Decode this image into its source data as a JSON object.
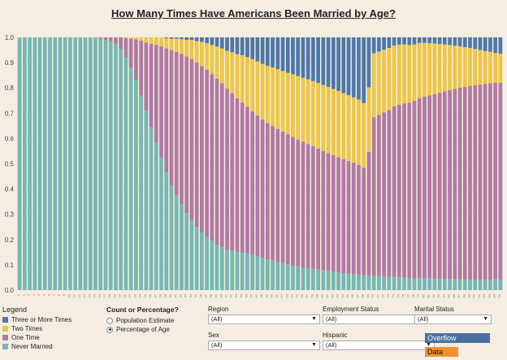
{
  "title": "How Many Times Have Americans Been Married by Age?",
  "colors": {
    "three_or_more": "#4e78a8",
    "two": "#ecc646",
    "one": "#b07aa1",
    "never": "#76b7b2"
  },
  "legend": {
    "title": "Legend",
    "items": [
      {
        "label": "Three or More Times",
        "color": "#4e78a8"
      },
      {
        "label": "Two Times",
        "color": "#ecc646"
      },
      {
        "label": "One Time",
        "color": "#b07aa1"
      },
      {
        "label": "Never Married",
        "color": "#76b7b2"
      }
    ]
  },
  "count_or_percentage": {
    "title": "Count or Percentage?",
    "options": [
      "Population Estimate",
      "Percentage of Age"
    ],
    "selected": "Percentage of Age"
  },
  "filters": {
    "region": {
      "label": "Region",
      "value": "(All)"
    },
    "employment_status": {
      "label": "Employment Status",
      "value": "(All)"
    },
    "marital_status": {
      "label": "Marital Status",
      "value": "(All)"
    },
    "sex": {
      "label": "Sex",
      "value": "(All)"
    },
    "hispanic": {
      "label": "Hispanic",
      "value": "(All)"
    }
  },
  "buttons": {
    "overflow": "Overflow",
    "data": "Data"
  },
  "chart_data": {
    "type": "bar",
    "stacked": true,
    "normalized": true,
    "ylim": [
      0,
      1
    ],
    "yticks": [
      0.0,
      0.1,
      0.2,
      0.3,
      0.4,
      0.5,
      0.6,
      0.7,
      0.8,
      0.9,
      1.0
    ],
    "ytick_labels": [
      "0.0",
      "0.1",
      "0.2",
      "0.3",
      "0.4",
      "0.5",
      "0.6",
      "0.7",
      "0.8",
      "0.9",
      "1.0"
    ],
    "x_start": 0,
    "x_end": 95,
    "series_order": [
      "never",
      "one",
      "two",
      "three_or_more"
    ],
    "series": [
      {
        "key": "never",
        "name": "Never Married",
        "values": [
          1,
          1,
          1,
          1,
          1,
          1,
          1,
          1,
          1,
          1,
          1,
          1,
          1,
          1,
          1,
          1,
          0.995,
          0.99,
          0.985,
          0.975,
          0.955,
          0.92,
          0.88,
          0.83,
          0.77,
          0.71,
          0.645,
          0.585,
          0.525,
          0.465,
          0.415,
          0.375,
          0.34,
          0.305,
          0.275,
          0.25,
          0.23,
          0.21,
          0.195,
          0.18,
          0.17,
          0.16,
          0.155,
          0.15,
          0.148,
          0.145,
          0.14,
          0.135,
          0.128,
          0.122,
          0.118,
          0.112,
          0.107,
          0.102,
          0.098,
          0.094,
          0.09,
          0.087,
          0.084,
          0.081,
          0.078,
          0.075,
          0.072,
          0.07,
          0.067,
          0.065,
          0.063,
          0.061,
          0.059,
          0.057,
          0.056,
          0.055,
          0.054,
          0.053,
          0.052,
          0.051,
          0.05,
          0.049,
          0.048,
          0.047,
          0.047,
          0.046,
          0.045,
          0.045,
          0.044,
          0.044,
          0.043,
          0.043,
          0.042,
          0.042,
          0.042,
          0.041,
          0.041,
          0.041,
          0.045,
          0.04
        ]
      },
      {
        "key": "one",
        "name": "One Time",
        "values": [
          0,
          0,
          0,
          0,
          0,
          0,
          0,
          0,
          0,
          0,
          0,
          0,
          0,
          0,
          0,
          0,
          0.005,
          0.01,
          0.015,
          0.025,
          0.045,
          0.078,
          0.115,
          0.162,
          0.217,
          0.27,
          0.33,
          0.385,
          0.44,
          0.492,
          0.535,
          0.567,
          0.595,
          0.62,
          0.64,
          0.65,
          0.657,
          0.662,
          0.66,
          0.656,
          0.648,
          0.637,
          0.624,
          0.609,
          0.594,
          0.58,
          0.567,
          0.556,
          0.547,
          0.539,
          0.532,
          0.526,
          0.52,
          0.514,
          0.508,
          0.502,
          0.497,
          0.491,
          0.485,
          0.479,
          0.473,
          0.467,
          0.462,
          0.456,
          0.451,
          0.446,
          0.441,
          0.435,
          0.425,
          0.49,
          0.628,
          0.638,
          0.649,
          0.66,
          0.675,
          0.683,
          0.689,
          0.693,
          0.701,
          0.712,
          0.719,
          0.725,
          0.731,
          0.736,
          0.742,
          0.748,
          0.753,
          0.758,
          0.762,
          0.766,
          0.769,
          0.772,
          0.775,
          0.778,
          0.775,
          0.78
        ]
      },
      {
        "key": "two",
        "name": "Two Times",
        "values": [
          0,
          0,
          0,
          0,
          0,
          0,
          0,
          0,
          0,
          0,
          0,
          0,
          0,
          0,
          0,
          0,
          0,
          0,
          0,
          0,
          0,
          0.002,
          0.005,
          0.008,
          0.013,
          0.02,
          0.025,
          0.03,
          0.035,
          0.04,
          0.045,
          0.053,
          0.058,
          0.065,
          0.075,
          0.085,
          0.095,
          0.105,
          0.115,
          0.128,
          0.138,
          0.15,
          0.162,
          0.175,
          0.187,
          0.197,
          0.207,
          0.214,
          0.22,
          0.226,
          0.231,
          0.236,
          0.24,
          0.244,
          0.248,
          0.251,
          0.253,
          0.256,
          0.258,
          0.26,
          0.261,
          0.262,
          0.262,
          0.262,
          0.261,
          0.26,
          0.259,
          0.258,
          0.256,
          0.255,
          0.253,
          0.251,
          0.248,
          0.245,
          0.241,
          0.237,
          0.233,
          0.228,
          0.223,
          0.219,
          0.212,
          0.206,
          0.2,
          0.193,
          0.186,
          0.178,
          0.171,
          0.164,
          0.157,
          0.15,
          0.143,
          0.137,
          0.13,
          0.124,
          0.118,
          0.115
        ]
      },
      {
        "key": "three_or_more",
        "name": "Three or More Times",
        "values": [
          0,
          0,
          0,
          0,
          0,
          0,
          0,
          0,
          0,
          0,
          0,
          0,
          0,
          0,
          0,
          0,
          0,
          0,
          0,
          0,
          0,
          0,
          0,
          0,
          0,
          0,
          0,
          0,
          0,
          0.003,
          0.005,
          0.005,
          0.007,
          0.01,
          0.01,
          0.015,
          0.018,
          0.023,
          0.03,
          0.036,
          0.044,
          0.053,
          0.059,
          0.066,
          0.071,
          0.078,
          0.086,
          0.095,
          0.105,
          0.113,
          0.119,
          0.126,
          0.133,
          0.14,
          0.146,
          0.153,
          0.16,
          0.166,
          0.173,
          0.18,
          0.188,
          0.196,
          0.204,
          0.212,
          0.221,
          0.229,
          0.237,
          0.246,
          0.26,
          0.198,
          0.063,
          0.056,
          0.049,
          0.042,
          0.032,
          0.029,
          0.028,
          0.03,
          0.028,
          0.022,
          0.022,
          0.023,
          0.024,
          0.026,
          0.028,
          0.03,
          0.033,
          0.035,
          0.039,
          0.042,
          0.046,
          0.05,
          0.054,
          0.057,
          0.062,
          0.065
        ]
      }
    ]
  }
}
